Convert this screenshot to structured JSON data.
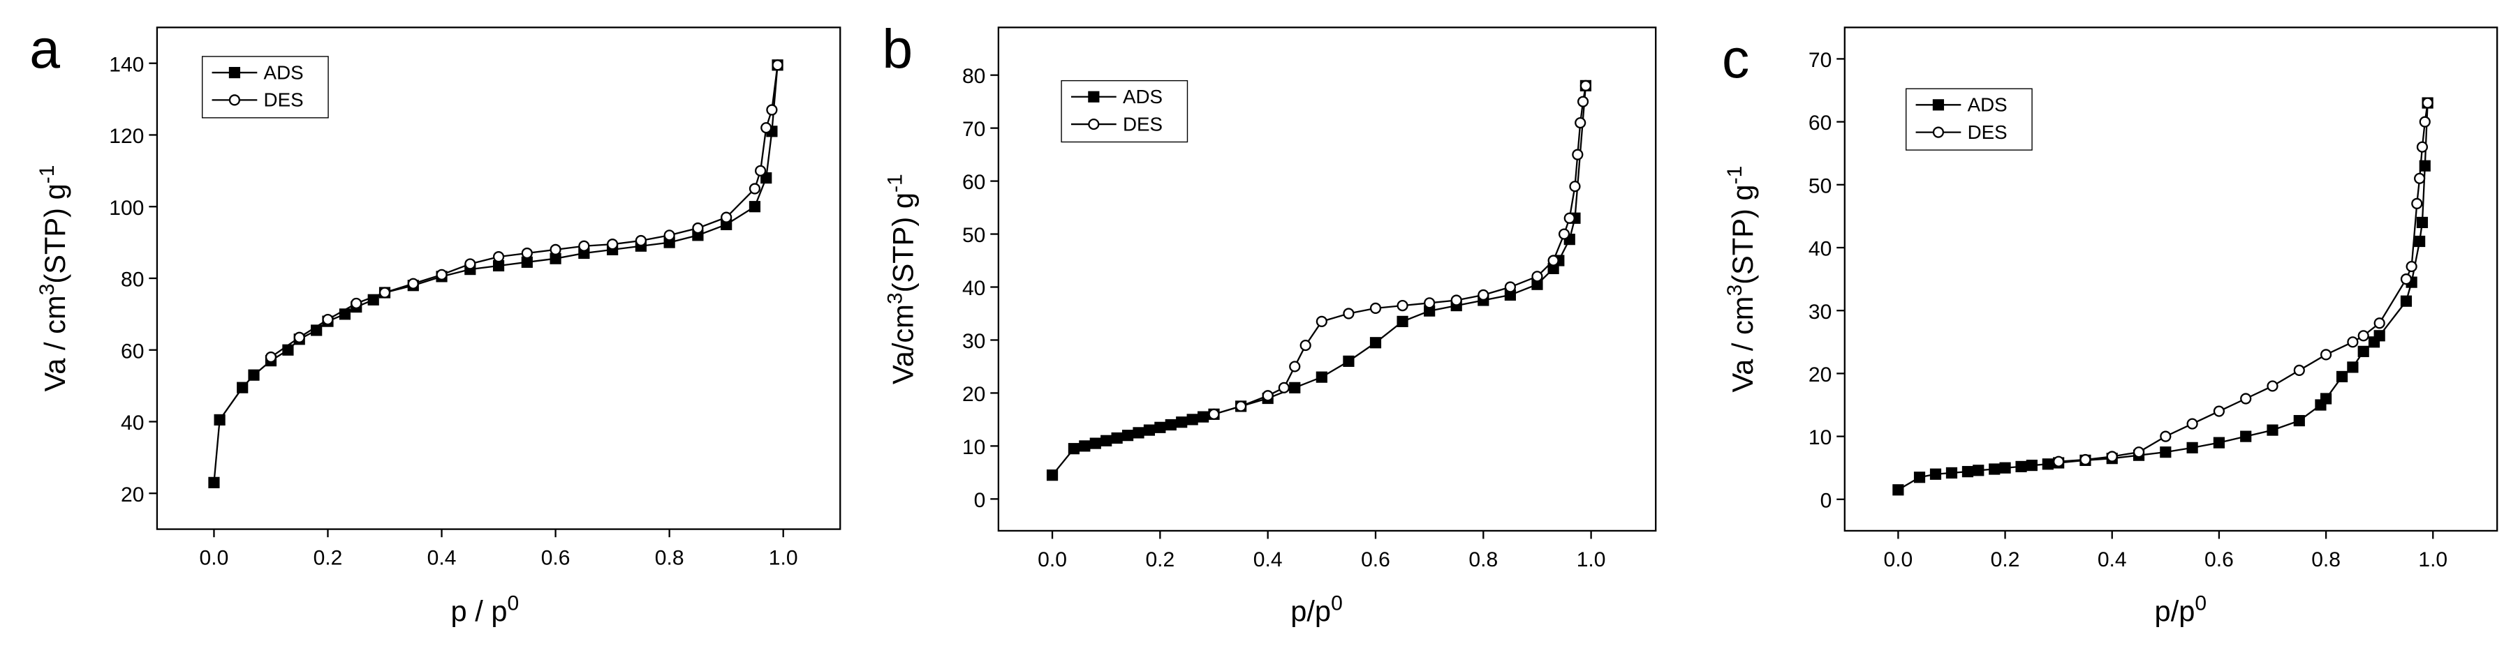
{
  "chart_data": [
    {
      "type": "line",
      "title": "a",
      "xlabel": [
        "p / p",
        "0"
      ],
      "ylabel": [
        "Va / cm",
        "3",
        "(STP) g",
        "-1"
      ],
      "xlim": [
        -0.1,
        1.1
      ],
      "ylim": [
        10,
        150
      ],
      "xticks": [
        {
          "value": 0,
          "label": "0.0"
        },
        {
          "value": 0.2,
          "label": "0.2"
        },
        {
          "value": 0.4,
          "label": "0.4"
        },
        {
          "value": 0.6,
          "label": "0.6"
        },
        {
          "value": 0.8,
          "label": "0.8"
        },
        {
          "value": 1,
          "label": "1.0"
        }
      ],
      "yticks": [
        20,
        40,
        60,
        80,
        100,
        120,
        140
      ],
      "legend": "upper left",
      "series": [
        {
          "name": "ADS",
          "color": "#000000",
          "marker": "square",
          "filled": true,
          "x": [
            0,
            0.01,
            0.05,
            0.07,
            0.1,
            0.13,
            0.15,
            0.18,
            0.2,
            0.23,
            0.25,
            0.28,
            0.3,
            0.35,
            0.4,
            0.45,
            0.5,
            0.55,
            0.6,
            0.65,
            0.7,
            0.75,
            0.8,
            0.85,
            0.9,
            0.95,
            0.97,
            0.98,
            0.99
          ],
          "values": [
            23,
            40.5,
            49.5,
            53,
            57,
            60,
            63,
            65.5,
            68,
            70,
            72,
            74,
            76,
            78,
            80.5,
            82.5,
            83.5,
            84.5,
            85.5,
            87,
            88,
            89,
            90,
            92,
            95,
            100,
            108,
            121,
            139.5
          ]
        },
        {
          "name": "DES",
          "color": "#000000",
          "marker": "circle",
          "filled": false,
          "x": [
            0.99,
            0.98,
            0.97,
            0.96,
            0.95,
            0.9,
            0.85,
            0.8,
            0.75,
            0.7,
            0.65,
            0.6,
            0.55,
            0.5,
            0.45,
            0.4,
            0.35,
            0.3,
            0.25,
            0.2,
            0.15,
            0.1
          ],
          "values": [
            139.5,
            127,
            122,
            110,
            105,
            97,
            94,
            92,
            90.5,
            89.5,
            89,
            88,
            87,
            86,
            84,
            81,
            78.5,
            76,
            73,
            68.5,
            63.5,
            58
          ]
        }
      ]
    },
    {
      "type": "line",
      "title": "b",
      "xlabel": [
        "p/p",
        "0"
      ],
      "ylabel": [
        "Va/cm",
        "3",
        "(STP) g",
        "-1"
      ],
      "xlim": [
        -0.1,
        1.12
      ],
      "ylim": [
        -6,
        89
      ],
      "xticks": [
        {
          "value": 0,
          "label": "0.0"
        },
        {
          "value": 0.2,
          "label": "0.2"
        },
        {
          "value": 0.4,
          "label": "0.4"
        },
        {
          "value": 0.6,
          "label": "0.6"
        },
        {
          "value": 0.8,
          "label": "0.8"
        },
        {
          "value": 1,
          "label": "1.0"
        }
      ],
      "yticks": [
        0,
        10,
        20,
        30,
        40,
        50,
        60,
        70,
        80
      ],
      "legend": "upper left",
      "series": [
        {
          "name": "ADS",
          "color": "#000000",
          "marker": "square",
          "filled": true,
          "x": [
            0,
            0.04,
            0.06,
            0.08,
            0.1,
            0.12,
            0.14,
            0.16,
            0.18,
            0.2,
            0.22,
            0.24,
            0.26,
            0.28,
            0.3,
            0.35,
            0.4,
            0.45,
            0.5,
            0.55,
            0.6,
            0.65,
            0.7,
            0.75,
            0.8,
            0.85,
            0.9,
            0.93,
            0.94,
            0.96,
            0.97,
            0.99
          ],
          "values": [
            4.5,
            9.5,
            10,
            10.5,
            11,
            11.5,
            12,
            12.5,
            13,
            13.5,
            14,
            14.5,
            15,
            15.5,
            16,
            17.5,
            19,
            21,
            23,
            26,
            29.5,
            33.5,
            35.5,
            36.5,
            37.5,
            38.5,
            40.5,
            43.5,
            45,
            49,
            53,
            78
          ]
        },
        {
          "name": "DES",
          "color": "#000000",
          "marker": "circle",
          "filled": false,
          "x": [
            0.99,
            0.985,
            0.98,
            0.975,
            0.97,
            0.96,
            0.95,
            0.93,
            0.9,
            0.85,
            0.8,
            0.75,
            0.7,
            0.65,
            0.6,
            0.55,
            0.5,
            0.47,
            0.45,
            0.43,
            0.4,
            0.35,
            0.3
          ],
          "values": [
            78,
            75,
            71,
            65,
            59,
            53,
            50,
            45,
            42,
            40,
            38.5,
            37.5,
            37,
            36.5,
            36,
            35,
            33.5,
            29,
            25,
            21,
            19.5,
            17.5,
            16
          ]
        }
      ]
    },
    {
      "type": "line",
      "title": "c",
      "xlabel": [
        "p/p",
        "0"
      ],
      "ylabel": [
        "Va / cm",
        "3",
        "(STP) g",
        "-1"
      ],
      "xlim": [
        -0.1,
        1.12
      ],
      "ylim": [
        -5,
        75
      ],
      "xticks": [
        {
          "value": 0,
          "label": "0.0"
        },
        {
          "value": 0.2,
          "label": "0.2"
        },
        {
          "value": 0.4,
          "label": "0.4"
        },
        {
          "value": 0.6,
          "label": "0.6"
        },
        {
          "value": 0.8,
          "label": "0.8"
        },
        {
          "value": 1,
          "label": "1.0"
        }
      ],
      "yticks": [
        0,
        10,
        20,
        30,
        40,
        50,
        60,
        70
      ],
      "legend": "upper left",
      "series": [
        {
          "name": "ADS",
          "color": "#000000",
          "marker": "square",
          "filled": true,
          "x": [
            0,
            0.04,
            0.07,
            0.1,
            0.13,
            0.15,
            0.18,
            0.2,
            0.23,
            0.25,
            0.28,
            0.3,
            0.35,
            0.4,
            0.45,
            0.5,
            0.55,
            0.6,
            0.65,
            0.7,
            0.75,
            0.79,
            0.8,
            0.83,
            0.85,
            0.87,
            0.89,
            0.9,
            0.95,
            0.96,
            0.975,
            0.98,
            0.985,
            0.99
          ],
          "values": [
            1.5,
            3.5,
            4,
            4.2,
            4.4,
            4.6,
            4.8,
            5,
            5.2,
            5.4,
            5.6,
            5.8,
            6.2,
            6.5,
            7,
            7.5,
            8.2,
            9,
            10,
            11,
            12.5,
            15,
            16,
            19.5,
            21,
            23.5,
            25,
            26,
            31.5,
            34.5,
            41,
            44,
            53,
            63
          ]
        },
        {
          "name": "DES",
          "color": "#000000",
          "marker": "circle",
          "filled": false,
          "x": [
            0.99,
            0.985,
            0.98,
            0.975,
            0.97,
            0.96,
            0.95,
            0.9,
            0.87,
            0.85,
            0.8,
            0.75,
            0.7,
            0.65,
            0.6,
            0.55,
            0.5,
            0.45,
            0.4,
            0.35,
            0.3
          ],
          "values": [
            63,
            60,
            56,
            51,
            47,
            37,
            35,
            28,
            26,
            25,
            23,
            20.5,
            18,
            16,
            14,
            12,
            10,
            7.5,
            6.8,
            6.3,
            6
          ]
        }
      ]
    }
  ]
}
